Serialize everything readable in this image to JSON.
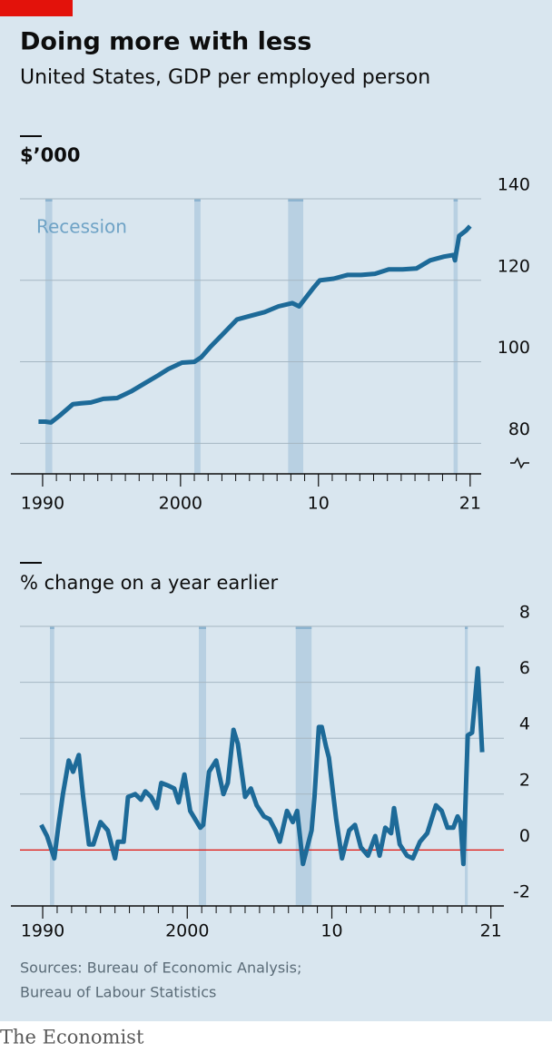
{
  "header": {
    "title": "Doing more with less",
    "subtitle": "United States, GDP per employed person"
  },
  "chart_data": [
    {
      "type": "line",
      "y_label": "$’000",
      "annotation": "Recession",
      "color": "#1d6a98",
      "grid": true,
      "xlim": [
        1987.7,
        2021.8
      ],
      "ylim": [
        72.5,
        140
      ],
      "xticks": [
        1990,
        2000,
        {
          "value": 2010,
          "label": "10"
        },
        {
          "value": 2021,
          "label": "21"
        }
      ],
      "xminorticks": [
        1991,
        1992,
        1993,
        1994,
        1995,
        1996,
        1997,
        1998,
        1999,
        2001,
        2002,
        2003,
        2004,
        2005,
        2006,
        2007,
        2008,
        2009,
        2011,
        2012,
        2013,
        2014,
        2015,
        2016,
        2017,
        2018,
        2019,
        2020
      ],
      "yticks": [
        80,
        100,
        120,
        140
      ],
      "recessions": [
        [
          1990.2,
          1990.7
        ],
        [
          2001.0,
          2001.45
        ],
        [
          2007.8,
          2008.9
        ],
        [
          2019.8,
          2020.1
        ]
      ],
      "x": [
        1989.7,
        1990.2,
        1990.6,
        1991.2,
        1992.2,
        1992.8,
        1993.5,
        1994.4,
        1995.4,
        1996.4,
        1997.4,
        1998.4,
        1999.1,
        2000.1,
        2001.0,
        2001.5,
        2002.2,
        2003.1,
        2004.1,
        2005.1,
        2006.1,
        2007.1,
        2008.1,
        2008.6,
        2009.1,
        2009.6,
        2010.1,
        2011.1,
        2012.1,
        2013.1,
        2014.1,
        2015.1,
        2016.1,
        2017.1,
        2018.1,
        2019.1,
        2019.8,
        2019.9,
        2020.2,
        2020.7,
        2021.0
      ],
      "values": [
        85.3,
        85.3,
        85.1,
        86.7,
        89.6,
        89.8,
        90.0,
        90.9,
        91.1,
        92.7,
        94.7,
        96.7,
        98.2,
        99.8,
        100.0,
        101.1,
        103.8,
        106.9,
        110.4,
        111.3,
        112.2,
        113.6,
        114.4,
        113.6,
        115.8,
        118.0,
        120.0,
        120.4,
        121.3,
        121.3,
        121.6,
        122.7,
        122.7,
        122.9,
        124.9,
        125.8,
        126.2,
        124.9,
        130.9,
        132.2,
        133.3
      ]
    },
    {
      "type": "line",
      "y_label": "% change on a year earlier",
      "color": "#1d6a98",
      "grid": true,
      "zero_line": "#e3120b",
      "xlim": [
        1987.8,
        2021.9
      ],
      "ylim": [
        -2,
        8
      ],
      "xticks": [
        1990,
        2000,
        {
          "value": 2010,
          "label": "10"
        },
        {
          "value": 2021,
          "label": "21"
        }
      ],
      "xminorticks": [
        1991,
        1992,
        1993,
        1994,
        1995,
        1996,
        1997,
        1998,
        1999,
        2001,
        2002,
        2003,
        2004,
        2005,
        2006,
        2007,
        2008,
        2009,
        2011,
        2012,
        2013,
        2014,
        2015,
        2016,
        2017,
        2018,
        2019,
        2020
      ],
      "yticks": [
        -2,
        0,
        2,
        4,
        6,
        8
      ],
      "recessions": [
        [
          1990.5,
          1990.8
        ],
        [
          2000.8,
          2001.3
        ],
        [
          2007.5,
          2008.6
        ],
        [
          2019.2,
          2019.4
        ]
      ],
      "x": [
        1989.9,
        1990.3,
        1990.8,
        1991.1,
        1991.4,
        1991.8,
        1992.1,
        1992.5,
        1992.8,
        1993.2,
        1993.5,
        1994.0,
        1994.5,
        1995.0,
        1995.2,
        1995.6,
        1995.9,
        1996.4,
        1996.8,
        1997.1,
        1997.5,
        1997.9,
        1998.2,
        1998.7,
        1999.1,
        1999.4,
        1999.8,
        2000.2,
        2000.9,
        2001.1,
        2001.5,
        2002.0,
        2002.5,
        2002.8,
        2003.2,
        2003.5,
        2004.0,
        2004.4,
        2004.8,
        2005.3,
        2005.7,
        2006.1,
        2006.4,
        2006.9,
        2007.3,
        2007.6,
        2008.0,
        2008.6,
        2008.8,
        2009.1,
        2009.3,
        2009.6,
        2009.8,
        2010.3,
        2010.7,
        2011.2,
        2011.6,
        2012.0,
        2012.5,
        2013.0,
        2013.3,
        2013.7,
        2014.1,
        2014.3,
        2014.7,
        2015.2,
        2015.6,
        2016.1,
        2016.6,
        2017.2,
        2017.6,
        2018.0,
        2018.4,
        2018.7,
        2018.9,
        2019.1,
        2019.4,
        2019.7,
        2020.1,
        2020.4
      ],
      "values": [
        0.9,
        0.5,
        -0.3,
        0.9,
        2.0,
        3.2,
        2.8,
        3.4,
        1.9,
        0.2,
        0.2,
        1.0,
        0.7,
        -0.3,
        0.3,
        0.3,
        1.9,
        2.0,
        1.8,
        2.1,
        1.9,
        1.5,
        2.4,
        2.3,
        2.2,
        1.7,
        2.7,
        1.4,
        0.8,
        0.9,
        2.8,
        3.2,
        2.0,
        2.4,
        4.3,
        3.8,
        1.9,
        2.2,
        1.6,
        1.2,
        1.1,
        0.7,
        0.3,
        1.4,
        1.0,
        1.4,
        -0.5,
        0.7,
        1.9,
        4.4,
        4.4,
        3.7,
        3.3,
        1.1,
        -0.3,
        0.7,
        0.9,
        0.1,
        -0.2,
        0.5,
        -0.2,
        0.8,
        0.6,
        1.5,
        0.2,
        -0.2,
        -0.3,
        0.3,
        0.6,
        1.6,
        1.4,
        0.8,
        0.8,
        1.2,
        1.0,
        -0.5,
        4.1,
        4.2,
        6.5,
        3.5
      ]
    }
  ],
  "footer": {
    "sources": [
      "Sources: Bureau of Economic Analysis;",
      "Bureau of Labour Statistics"
    ],
    "brand": "The Economist"
  }
}
